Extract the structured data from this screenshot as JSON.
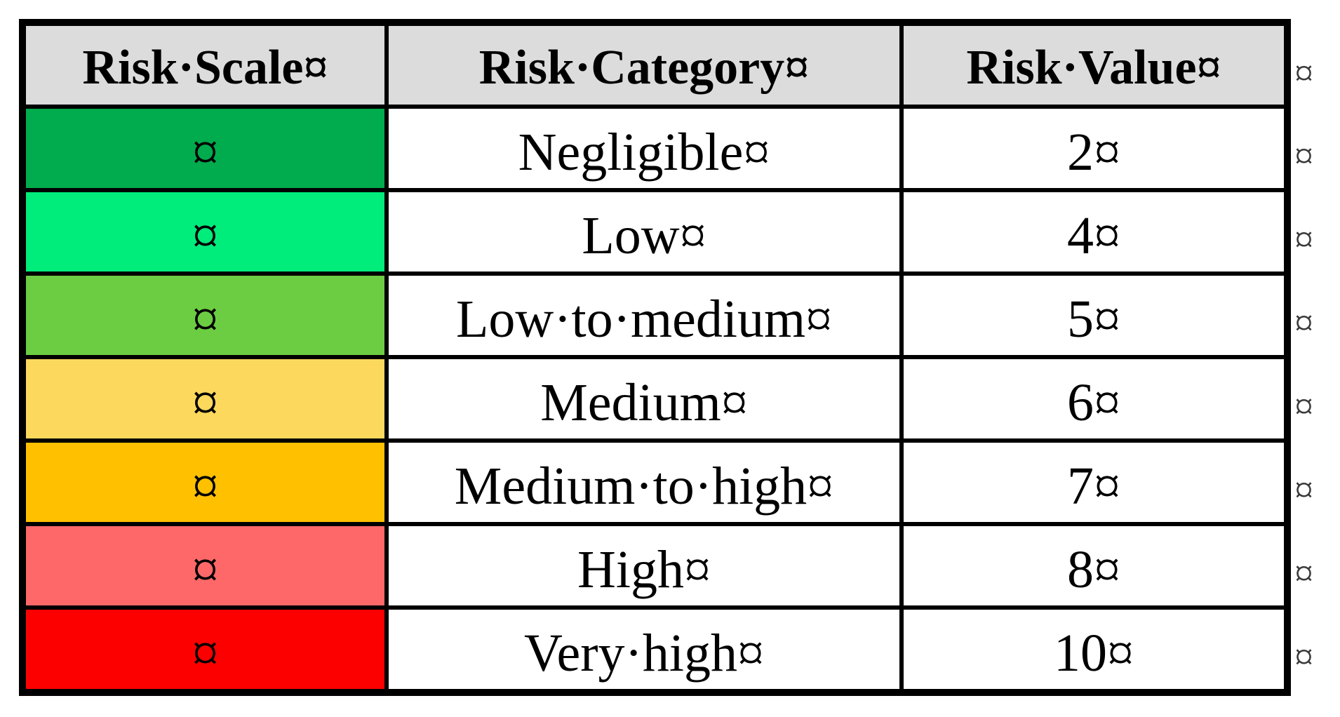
{
  "table": {
    "header_bg": "#DCDCDC",
    "headers": [
      {
        "label": "Risk·Scale¤"
      },
      {
        "label": "Risk·Category¤"
      },
      {
        "label": "Risk·Value¤"
      }
    ],
    "rows": [
      {
        "scale_color": "#00AC4D",
        "scale_marker": "¤",
        "category": "Negligible¤",
        "value": "2¤"
      },
      {
        "scale_color": "#00EC7B",
        "scale_marker": "¤",
        "category": "Low¤",
        "value": "4¤"
      },
      {
        "scale_color": "#6CCD42",
        "scale_marker": "¤",
        "category": "Low·to·medium¤",
        "value": "5¤"
      },
      {
        "scale_color": "#FCD95C",
        "scale_marker": "¤",
        "category": "Medium¤",
        "value": "6¤"
      },
      {
        "scale_color": "#FFC000",
        "scale_marker": "¤",
        "category": "Medium·to·high¤",
        "value": "7¤"
      },
      {
        "scale_color": "#FF6868",
        "scale_marker": "¤",
        "category": "High¤",
        "value": "8¤"
      },
      {
        "scale_color": "#FC0000",
        "scale_marker": "¤",
        "category": "Very·high¤",
        "value": "10¤"
      }
    ],
    "row_end_marker": "¤"
  }
}
